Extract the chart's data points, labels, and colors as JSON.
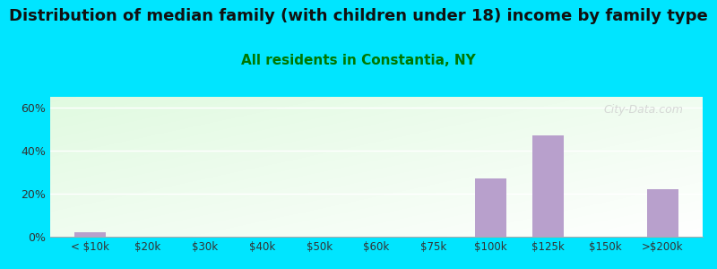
{
  "title": "Distribution of median family (with children under 18) income by family type",
  "subtitle": "All residents in Constantia, NY",
  "categories": [
    "< $10k",
    "$20k",
    "$30k",
    "$40k",
    "$50k",
    "$60k",
    "$75k",
    "$100k",
    "$125k",
    "$150k",
    ">$200k"
  ],
  "values": [
    2.0,
    0,
    0,
    0,
    0,
    0,
    0,
    27.0,
    47.0,
    0,
    22.0
  ],
  "bar_color": "#b8a0cc",
  "title_fontsize": 13,
  "subtitle_fontsize": 11,
  "subtitle_color": "#007700",
  "background_outer": "#00e5ff",
  "ylim": [
    0,
    65
  ],
  "yticks": [
    0,
    20,
    40,
    60
  ],
  "ytick_labels": [
    "0%",
    "20%",
    "40%",
    "60%"
  ]
}
